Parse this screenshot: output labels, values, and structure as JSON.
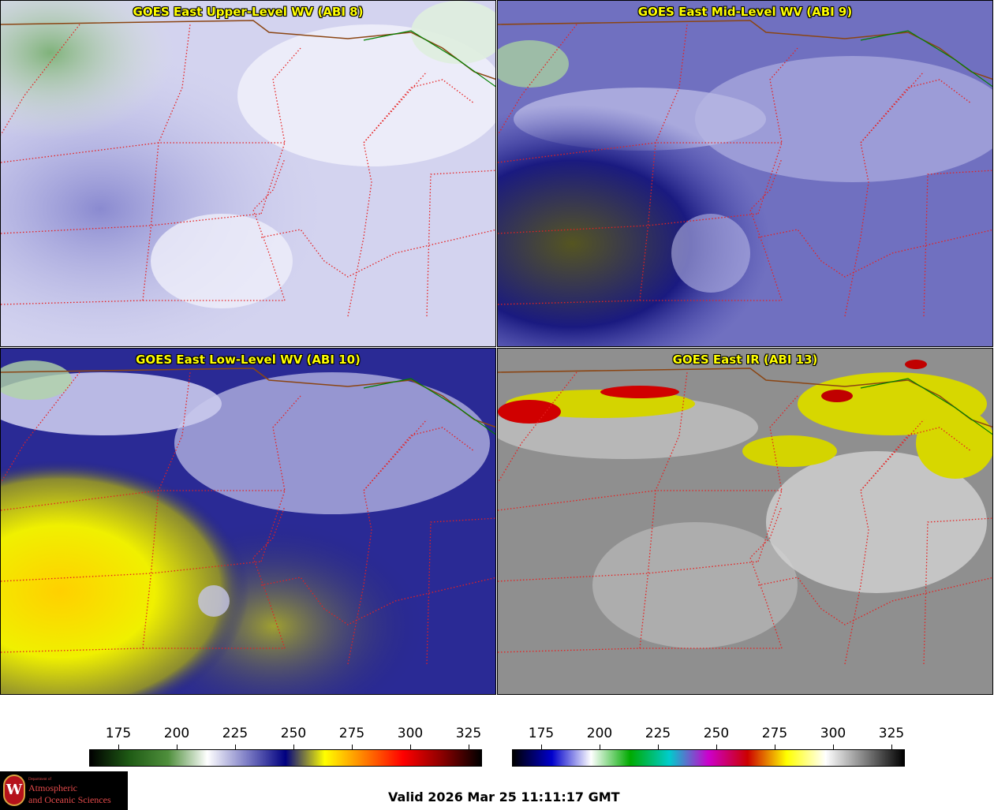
{
  "panels": [
    {
      "title": "GOES East Upper-Level WV (ABI 8)",
      "product": "upper-wv"
    },
    {
      "title": "GOES East Mid-Level WV (ABI 9)",
      "product": "mid-wv"
    },
    {
      "title": "GOES East Low-Level WV (ABI 10)",
      "product": "low-wv"
    },
    {
      "title": "GOES East IR (ABI 13)",
      "product": "ir"
    }
  ],
  "colorbars": {
    "wv": {
      "ticks": [
        "175",
        "200",
        "225",
        "250",
        "275",
        "300",
        "325"
      ],
      "stops": [
        "#000000",
        "#1e5a14",
        "#4f8f3c",
        "#ffffff",
        "#7f7fc6",
        "#000080",
        "#ffff00",
        "#ff8000",
        "#ff0000",
        "#8b0000",
        "#000000"
      ]
    },
    "ir": {
      "ticks": [
        "175",
        "200",
        "225",
        "250",
        "275",
        "300",
        "325"
      ],
      "stops": [
        "#000000",
        "#0000cc",
        "#ffffff",
        "#00aa00",
        "#00cccc",
        "#cc00cc",
        "#cc0000",
        "#ffff00",
        "#ffffff",
        "#808080",
        "#000000"
      ]
    }
  },
  "logo": {
    "department": "Department of",
    "line1": "Atmospheric",
    "line2": "and Oceanic Sciences",
    "seal_letter": "W"
  },
  "footer": {
    "valid": "Valid 2026 Mar 25 11:11:17 GMT"
  },
  "colors": {
    "title_text": "#ffff00",
    "state_borders": "#e62020",
    "intl_border": "#8b4513",
    "canada_border": "#008000"
  }
}
